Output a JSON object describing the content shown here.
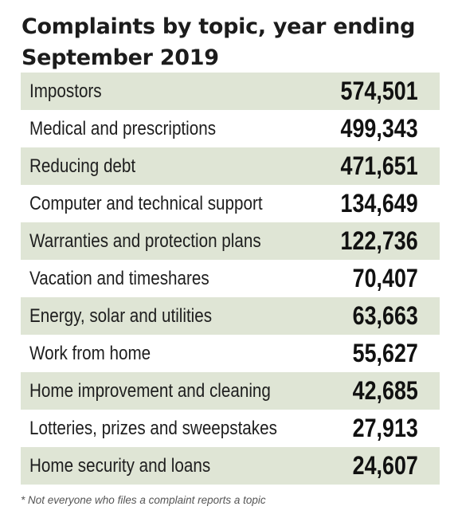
{
  "chart_data": {
    "type": "table",
    "title_lines": [
      "Complaints by topic, year ending",
      "September 2019"
    ],
    "rows": [
      {
        "topic": "Impostors",
        "count": "574,501"
      },
      {
        "topic": "Medical and prescriptions",
        "count": "499,343"
      },
      {
        "topic": "Reducing debt",
        "count": "471,651"
      },
      {
        "topic": "Computer and technical support",
        "count": "134,649"
      },
      {
        "topic": "Warranties and protection plans",
        "count": "122,736"
      },
      {
        "topic": "Vacation and timeshares",
        "count": "70,407"
      },
      {
        "topic": "Energy, solar and utilities",
        "count": "63,663"
      },
      {
        "topic": "Work from home",
        "count": "55,627"
      },
      {
        "topic": "Home improvement and cleaning",
        "count": "42,685"
      },
      {
        "topic": "Lotteries, prizes and sweepstakes",
        "count": "27,913"
      },
      {
        "topic": "Home security and loans",
        "count": "24,607"
      }
    ],
    "shading": "alternating rows",
    "colors": {
      "row_shade": "#dfe5d5",
      "text": "#1a1a1a",
      "footnote": "#555555"
    }
  },
  "footnote": "* Not everyone who files a complaint reports a topic"
}
